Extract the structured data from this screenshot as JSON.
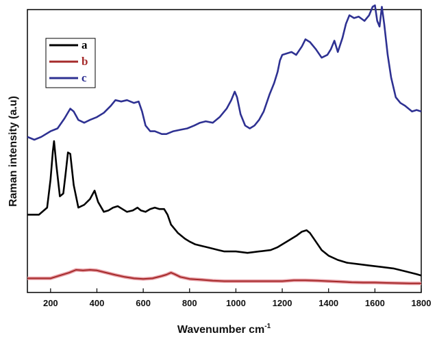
{
  "chart_data": {
    "type": "line",
    "title": "",
    "xlabel": "Wavenumber cm",
    "xlabel_sup": "-1",
    "ylabel": "Raman intensity (a.u)",
    "xlim": [
      100,
      1800
    ],
    "ylim": [
      0,
      100
    ],
    "x_ticks": [
      200,
      400,
      600,
      800,
      1000,
      1200,
      1400,
      1600,
      1800
    ],
    "y_ticks_labeled": false,
    "grid": false,
    "legend_position": "top-left",
    "series": [
      {
        "name": "a",
        "color": "#000000",
        "points": [
          [
            100,
            27.5
          ],
          [
            150,
            27.5
          ],
          [
            185,
            30
          ],
          [
            200,
            40
          ],
          [
            210,
            50
          ],
          [
            215,
            53.5
          ],
          [
            225,
            45
          ],
          [
            240,
            34
          ],
          [
            255,
            35
          ],
          [
            265,
            42
          ],
          [
            275,
            49.5
          ],
          [
            285,
            49
          ],
          [
            300,
            38
          ],
          [
            320,
            30
          ],
          [
            345,
            31
          ],
          [
            370,
            33
          ],
          [
            390,
            36
          ],
          [
            405,
            32
          ],
          [
            430,
            28.5
          ],
          [
            450,
            29
          ],
          [
            470,
            30
          ],
          [
            490,
            30.5
          ],
          [
            510,
            29.5
          ],
          [
            530,
            28.5
          ],
          [
            555,
            29
          ],
          [
            575,
            30
          ],
          [
            590,
            29
          ],
          [
            610,
            28.5
          ],
          [
            630,
            29.5
          ],
          [
            650,
            30
          ],
          [
            670,
            29.5
          ],
          [
            690,
            29.5
          ],
          [
            705,
            27.5
          ],
          [
            720,
            24
          ],
          [
            750,
            21
          ],
          [
            780,
            19
          ],
          [
            800,
            18
          ],
          [
            825,
            17
          ],
          [
            850,
            16.5
          ],
          [
            875,
            16
          ],
          [
            900,
            15.5
          ],
          [
            925,
            15
          ],
          [
            950,
            14.5
          ],
          [
            975,
            14.5
          ],
          [
            1000,
            14.5
          ],
          [
            1050,
            14
          ],
          [
            1100,
            14.5
          ],
          [
            1150,
            15
          ],
          [
            1180,
            16
          ],
          [
            1200,
            17
          ],
          [
            1230,
            18.5
          ],
          [
            1260,
            20
          ],
          [
            1285,
            21.5
          ],
          [
            1305,
            22
          ],
          [
            1320,
            21
          ],
          [
            1345,
            18
          ],
          [
            1370,
            15
          ],
          [
            1400,
            13
          ],
          [
            1440,
            11.5
          ],
          [
            1480,
            10.5
          ],
          [
            1530,
            10
          ],
          [
            1580,
            9.5
          ],
          [
            1630,
            9
          ],
          [
            1680,
            8.5
          ],
          [
            1730,
            7.5
          ],
          [
            1780,
            6.5
          ],
          [
            1800,
            6
          ]
        ]
      },
      {
        "name": "b",
        "color": "#a52a2a",
        "points": [
          [
            100,
            5
          ],
          [
            150,
            5
          ],
          [
            200,
            5
          ],
          [
            240,
            6
          ],
          [
            280,
            7
          ],
          [
            310,
            8
          ],
          [
            340,
            7.8
          ],
          [
            370,
            8
          ],
          [
            400,
            7.8
          ],
          [
            440,
            7
          ],
          [
            480,
            6.2
          ],
          [
            520,
            5.5
          ],
          [
            560,
            5
          ],
          [
            600,
            4.8
          ],
          [
            640,
            5
          ],
          [
            680,
            5.8
          ],
          [
            700,
            6.3
          ],
          [
            720,
            7
          ],
          [
            735,
            6.5
          ],
          [
            760,
            5.5
          ],
          [
            800,
            4.8
          ],
          [
            850,
            4.5
          ],
          [
            900,
            4.2
          ],
          [
            950,
            4
          ],
          [
            1000,
            4
          ],
          [
            1050,
            4
          ],
          [
            1100,
            4
          ],
          [
            1150,
            4
          ],
          [
            1200,
            4
          ],
          [
            1250,
            4.3
          ],
          [
            1300,
            4.3
          ],
          [
            1350,
            4.2
          ],
          [
            1400,
            4
          ],
          [
            1450,
            3.8
          ],
          [
            1500,
            3.6
          ],
          [
            1550,
            3.5
          ],
          [
            1600,
            3.5
          ],
          [
            1650,
            3.4
          ],
          [
            1700,
            3.3
          ],
          [
            1750,
            3.2
          ],
          [
            1800,
            3.2
          ]
        ]
      },
      {
        "name": "c",
        "color": "#2e3192",
        "points": [
          [
            100,
            55
          ],
          [
            130,
            54
          ],
          [
            160,
            55
          ],
          [
            200,
            57
          ],
          [
            230,
            58
          ],
          [
            260,
            61.5
          ],
          [
            285,
            65
          ],
          [
            300,
            64
          ],
          [
            320,
            61
          ],
          [
            345,
            60
          ],
          [
            370,
            61
          ],
          [
            400,
            62
          ],
          [
            430,
            63.5
          ],
          [
            460,
            66
          ],
          [
            480,
            68
          ],
          [
            505,
            67.5
          ],
          [
            530,
            68
          ],
          [
            560,
            67
          ],
          [
            580,
            67.5
          ],
          [
            595,
            64
          ],
          [
            610,
            59
          ],
          [
            630,
            57
          ],
          [
            650,
            57
          ],
          [
            680,
            56
          ],
          [
            700,
            56
          ],
          [
            730,
            57
          ],
          [
            760,
            57.5
          ],
          [
            790,
            58
          ],
          [
            820,
            59
          ],
          [
            845,
            60
          ],
          [
            870,
            60.5
          ],
          [
            900,
            60
          ],
          [
            930,
            62
          ],
          [
            960,
            65
          ],
          [
            980,
            68
          ],
          [
            995,
            71
          ],
          [
            1005,
            69
          ],
          [
            1020,
            63
          ],
          [
            1040,
            59
          ],
          [
            1060,
            58
          ],
          [
            1080,
            59
          ],
          [
            1100,
            61
          ],
          [
            1120,
            64
          ],
          [
            1145,
            70
          ],
          [
            1165,
            74
          ],
          [
            1180,
            78
          ],
          [
            1190,
            82
          ],
          [
            1200,
            84
          ],
          [
            1220,
            84.5
          ],
          [
            1240,
            85
          ],
          [
            1260,
            84
          ],
          [
            1285,
            87
          ],
          [
            1300,
            89.5
          ],
          [
            1320,
            88.5
          ],
          [
            1345,
            86
          ],
          [
            1370,
            83
          ],
          [
            1395,
            84
          ],
          [
            1410,
            86
          ],
          [
            1425,
            89
          ],
          [
            1440,
            85
          ],
          [
            1460,
            90
          ],
          [
            1475,
            95
          ],
          [
            1490,
            98
          ],
          [
            1510,
            97
          ],
          [
            1530,
            97.5
          ],
          [
            1555,
            96
          ],
          [
            1575,
            98
          ],
          [
            1590,
            101
          ],
          [
            1600,
            101.5
          ],
          [
            1610,
            96
          ],
          [
            1620,
            94
          ],
          [
            1630,
            101
          ],
          [
            1640,
            95
          ],
          [
            1655,
            84
          ],
          [
            1670,
            76
          ],
          [
            1690,
            69
          ],
          [
            1710,
            67
          ],
          [
            1730,
            66
          ],
          [
            1760,
            64
          ],
          [
            1780,
            64.5
          ],
          [
            1800,
            64
          ]
        ]
      }
    ]
  }
}
